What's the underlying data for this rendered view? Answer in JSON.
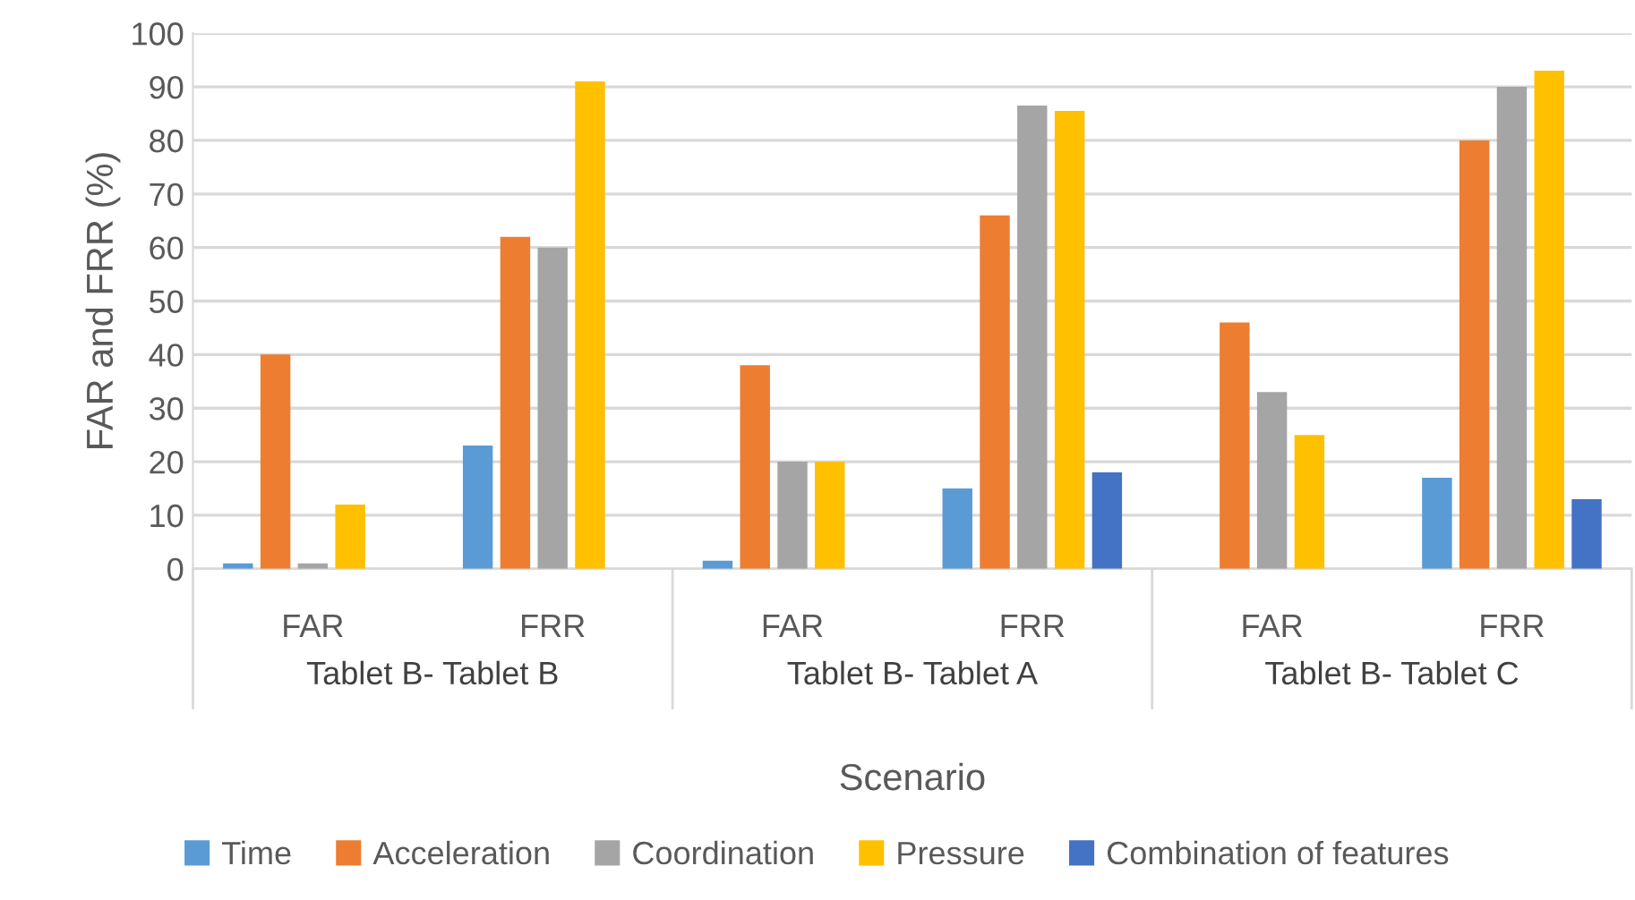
{
  "chart_data": {
    "type": "bar",
    "xlabel": "Scenario",
    "ylabel": "FAR and FRR (%)",
    "categories": [
      "FAR",
      "FRR",
      "FAR",
      "FRR",
      "FAR",
      "FRR"
    ],
    "annotations": [
      "Tablet B- Tablet B",
      "Tablet B- Tablet A",
      "Tablet B- Tablet C"
    ],
    "series": [
      {
        "name": "Time",
        "color": "#5b9bd5",
        "values": [
          1,
          23,
          1.5,
          15,
          0,
          17
        ]
      },
      {
        "name": "Acceleration",
        "color": "#ed7d31",
        "values": [
          40,
          62,
          38,
          66,
          46,
          80
        ]
      },
      {
        "name": "Coordination",
        "color": "#a5a5a5",
        "values": [
          1,
          60,
          20,
          86.5,
          33,
          90
        ]
      },
      {
        "name": "Pressure",
        "color": "#ffc000",
        "values": [
          12,
          91,
          20,
          85.5,
          25,
          93
        ]
      },
      {
        "name": "Combination of features",
        "color": "#4472c4",
        "values": [
          0,
          0,
          0,
          18,
          0,
          13
        ]
      }
    ],
    "ylim": [
      0,
      100
    ],
    "yticks": [
      0,
      10,
      20,
      30,
      40,
      50,
      60,
      70,
      80,
      90,
      100
    ],
    "grid": "y",
    "legend": "bottom"
  }
}
